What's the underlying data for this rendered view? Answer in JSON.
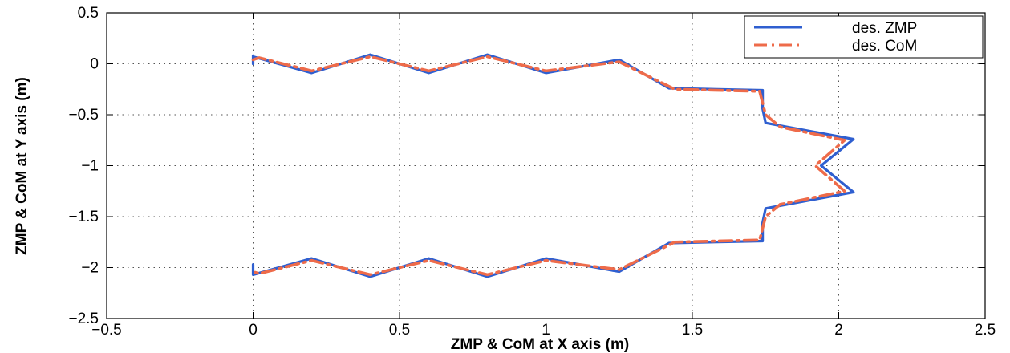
{
  "chart_data": {
    "type": "line",
    "xlabel": "ZMP & CoM at X axis (m)",
    "ylabel": "ZMP & CoM at Y axis (m)",
    "xlim": [
      -0.5,
      2.5
    ],
    "ylim": [
      -2.5,
      0.5
    ],
    "xticks": [
      -0.5,
      0,
      0.5,
      1,
      1.5,
      2,
      2.5
    ],
    "xtick_labels": [
      "−0.5",
      "0",
      "0.5",
      "1",
      "1.5",
      "2",
      "2.5"
    ],
    "yticks": [
      0.5,
      0,
      -0.5,
      -1,
      -1.5,
      -2,
      -2.5
    ],
    "ytick_labels": [
      "0.5",
      "0",
      "−0.5",
      "−1",
      "−1.5",
      "−2",
      "−2.5"
    ],
    "grid": true,
    "legend_position": "top-right",
    "series": [
      {
        "name": "des. ZMP",
        "color": "#2f5fd0",
        "style": "solid",
        "points": [
          [
            0,
            0.08
          ],
          [
            0,
            0.0
          ],
          [
            0,
            0.07
          ],
          [
            0.2,
            -0.09
          ],
          [
            0.4,
            0.09
          ],
          [
            0.6,
            -0.09
          ],
          [
            0.8,
            0.09
          ],
          [
            1.0,
            -0.09
          ],
          [
            1.25,
            0.04
          ],
          [
            1.42,
            -0.24
          ],
          [
            1.74,
            -0.26
          ],
          [
            1.74,
            -0.44
          ],
          [
            1.75,
            -0.58
          ],
          [
            2.05,
            -0.74
          ],
          [
            1.94,
            -1.0
          ],
          [
            2.05,
            -1.26
          ],
          [
            1.75,
            -1.42
          ],
          [
            1.74,
            -1.56
          ],
          [
            1.74,
            -1.74
          ],
          [
            1.42,
            -1.76
          ],
          [
            1.25,
            -2.04
          ],
          [
            1.0,
            -1.91
          ],
          [
            0.8,
            -2.09
          ],
          [
            0.6,
            -1.91
          ],
          [
            0.4,
            -2.09
          ],
          [
            0.2,
            -1.91
          ],
          [
            0,
            -2.07
          ],
          [
            0,
            -2.0
          ],
          [
            0,
            -1.97
          ]
        ]
      },
      {
        "name": "des. CoM",
        "color": "#ee6b4a",
        "style": "dashdot",
        "points": [
          [
            0,
            0.04
          ],
          [
            0.02,
            0.06
          ],
          [
            0.2,
            -0.07
          ],
          [
            0.4,
            0.07
          ],
          [
            0.6,
            -0.07
          ],
          [
            0.8,
            0.07
          ],
          [
            1.0,
            -0.07
          ],
          [
            1.25,
            0.02
          ],
          [
            1.44,
            -0.25
          ],
          [
            1.73,
            -0.27
          ],
          [
            1.75,
            -0.5
          ],
          [
            1.8,
            -0.62
          ],
          [
            2.02,
            -0.75
          ],
          [
            1.92,
            -1.0
          ],
          [
            2.02,
            -1.25
          ],
          [
            1.8,
            -1.38
          ],
          [
            1.75,
            -1.5
          ],
          [
            1.73,
            -1.73
          ],
          [
            1.44,
            -1.75
          ],
          [
            1.25,
            -2.02
          ],
          [
            1.0,
            -1.93
          ],
          [
            0.8,
            -2.07
          ],
          [
            0.6,
            -1.93
          ],
          [
            0.4,
            -2.07
          ],
          [
            0.2,
            -1.93
          ],
          [
            0.02,
            -2.06
          ],
          [
            0,
            -2.04
          ]
        ]
      }
    ]
  }
}
